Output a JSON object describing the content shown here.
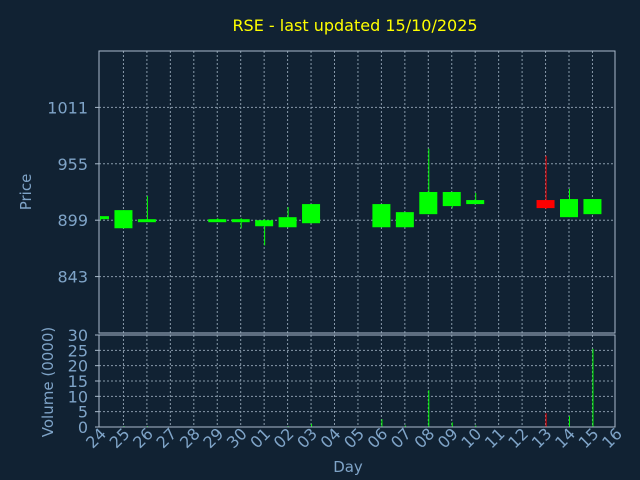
{
  "chart_data": {
    "type": "candlestick",
    "title": "RSE - last updated 15/10/2025",
    "price_panel": {
      "ylabel": "Price",
      "yticks": [
        843,
        899,
        955,
        1011
      ],
      "ylim": [
        787,
        1067
      ]
    },
    "volume_panel": {
      "ylabel": "Volume (0000)",
      "yticks": [
        0,
        5,
        10,
        15,
        20,
        25,
        30
      ],
      "ylim": [
        0,
        30
      ]
    },
    "xlabel": "Day",
    "x_ticks": [
      "24",
      "25",
      "26",
      "27",
      "28",
      "29",
      "30",
      "01",
      "02",
      "03",
      "04",
      "05",
      "06",
      "07",
      "08",
      "09",
      "10",
      "11",
      "12",
      "13",
      "14",
      "15",
      "16"
    ],
    "grid": true,
    "colors": {
      "background": "#112233",
      "up": "#00ff00",
      "down": "#ff0000",
      "title": "#ffff00",
      "axis_text": "#7fa4c8",
      "frame": "#aabbcc",
      "grid": "#8899aa"
    },
    "candles": [
      {
        "day": "24",
        "open": 901,
        "high": 903,
        "low": 899,
        "close": 903,
        "volume": 0
      },
      {
        "day": "25",
        "open": 891,
        "high": 909,
        "low": 891,
        "close": 909,
        "volume": 0.3
      },
      {
        "day": "26",
        "open": 899,
        "high": 923,
        "low": 898,
        "close": 900,
        "volume": 0.3
      },
      {
        "day": "29",
        "open": 899,
        "high": 901,
        "low": 899,
        "close": 900,
        "volume": 0
      },
      {
        "day": "30",
        "open": 899,
        "high": 901,
        "low": 891,
        "close": 900,
        "volume": 0
      },
      {
        "day": "01",
        "open": 893,
        "high": 900,
        "low": 874,
        "close": 899,
        "volume": 0
      },
      {
        "day": "02",
        "open": 892,
        "high": 912,
        "low": 892,
        "close": 902,
        "volume": 0.3
      },
      {
        "day": "03",
        "open": 896,
        "high": 915,
        "low": 896,
        "close": 915,
        "volume": 1.0
      },
      {
        "day": "06",
        "open": 892,
        "high": 915,
        "low": 892,
        "close": 915,
        "volume": 2.5
      },
      {
        "day": "07",
        "open": 892,
        "high": 907,
        "low": 892,
        "close": 907,
        "volume": 0.5
      },
      {
        "day": "08",
        "open": 905,
        "high": 970,
        "low": 905,
        "close": 927,
        "volume": 12
      },
      {
        "day": "09",
        "open": 913,
        "high": 927,
        "low": 911,
        "close": 927,
        "volume": 1.5
      },
      {
        "day": "10",
        "open": 915,
        "high": 926,
        "low": 915,
        "close": 919,
        "volume": 0.5
      },
      {
        "day": "13",
        "open": 919,
        "high": 963,
        "low": 910,
        "close": 911,
        "volume": 4.5
      },
      {
        "day": "14",
        "open": 902,
        "high": 930,
        "low": 902,
        "close": 920,
        "volume": 3.5
      },
      {
        "day": "15",
        "open": 905,
        "high": 920,
        "low": 905,
        "close": 920,
        "volume": 25.5
      }
    ]
  }
}
